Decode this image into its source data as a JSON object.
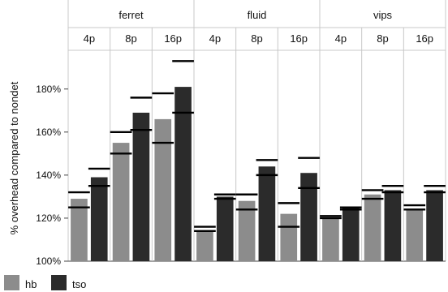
{
  "chart_data": {
    "type": "bar",
    "title": "",
    "xlabel": "",
    "ylabel": "% overhead compared to nondet",
    "ylim": [
      100,
      198
    ],
    "yticks": [
      100,
      120,
      140,
      160,
      180
    ],
    "ytick_labels": [
      "100%",
      "120%",
      "140%",
      "160%",
      "180%"
    ],
    "grid": false,
    "legend_position": "bottom-left",
    "groups": [
      {
        "name": "ferret",
        "categories": [
          {
            "label": "4p",
            "values": {
              "hb": 129,
              "tso": 139
            },
            "error": {
              "hb": [
                125,
                132
              ],
              "tso": [
                135,
                143
              ]
            }
          },
          {
            "label": "8p",
            "values": {
              "hb": 155,
              "tso": 169
            },
            "error": {
              "hb": [
                150,
                160
              ],
              "tso": [
                161,
                176
              ]
            }
          },
          {
            "label": "16p",
            "values": {
              "hb": 166,
              "tso": 181
            },
            "error": {
              "hb": [
                155,
                178
              ],
              "tso": [
                169,
                193
              ]
            }
          }
        ]
      },
      {
        "name": "fluid",
        "categories": [
          {
            "label": "4p",
            "values": {
              "hb": 114,
              "tso": 130
            },
            "error": {
              "hb": [
                114,
                116
              ],
              "tso": [
                129,
                131
              ]
            }
          },
          {
            "label": "8p",
            "values": {
              "hb": 128,
              "tso": 144
            },
            "error": {
              "hb": [
                124,
                131
              ],
              "tso": [
                140,
                147
              ]
            }
          },
          {
            "label": "16p",
            "values": {
              "hb": 122,
              "tso": 141
            },
            "error": {
              "hb": [
                116,
                127
              ],
              "tso": [
                134,
                148
              ]
            }
          }
        ]
      },
      {
        "name": "vips",
        "categories": [
          {
            "label": "4p",
            "values": {
              "hb": 120,
              "tso": 125
            },
            "error": {
              "hb": [
                120,
                121
              ],
              "tso": [
                124,
                125
              ]
            }
          },
          {
            "label": "8p",
            "values": {
              "hb": 131,
              "tso": 133
            },
            "error": {
              "hb": [
                129,
                133
              ],
              "tso": [
                132,
                135
              ]
            }
          },
          {
            "label": "16p",
            "values": {
              "hb": 124,
              "tso": 133
            },
            "error": {
              "hb": [
                124,
                126
              ],
              "tso": [
                132,
                135
              ]
            }
          }
        ]
      }
    ],
    "series": [
      {
        "name": "hb",
        "color": "#8c8c8c"
      },
      {
        "name": "tso",
        "color": "#2b2b2b"
      }
    ]
  }
}
